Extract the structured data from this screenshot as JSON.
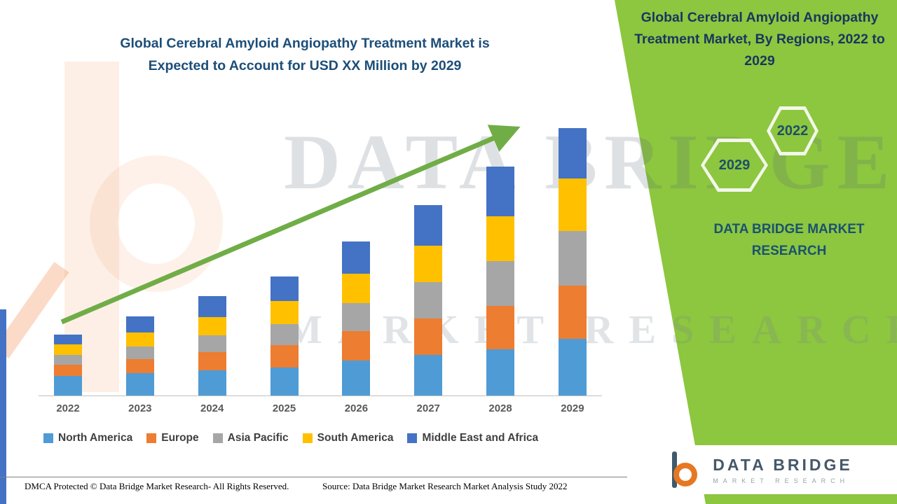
{
  "title": {
    "line1": "Global Cerebral Amyloid Angiopathy Treatment Market is",
    "line2": "Expected to Account for USD XX Million by 2029"
  },
  "side_panel": {
    "title": "Global Cerebral Amyloid Angiopathy Treatment Market, By Regions, 2022 to 2029",
    "hexagon_labels": [
      "2029",
      "2022"
    ],
    "brand_text": "DATA BRIDGE MARKET RESEARCH",
    "background_color": "#8dc63f"
  },
  "watermark": {
    "line1": "DATA BRIDGE",
    "line2": "MARKET RESEARCH"
  },
  "chart_data": {
    "type": "bar",
    "stacked": true,
    "title": "Global Cerebral Amyloid Angiopathy Treatment Market is Expected to Account for USD XX Million by 2029",
    "value_axis": "unlabeled (values shown as USD XX Million)",
    "categories": [
      "2022",
      "2023",
      "2024",
      "2025",
      "2026",
      "2027",
      "2028",
      "2029"
    ],
    "series": [
      {
        "name": "North America",
        "color": "#4f9bd5",
        "values": [
          28,
          32,
          36,
          40,
          50,
          58,
          66,
          81
        ]
      },
      {
        "name": "Europe",
        "color": "#ed7d31",
        "values": [
          16,
          20,
          26,
          32,
          42,
          52,
          62,
          76
        ]
      },
      {
        "name": "Asia Pacific",
        "color": "#a6a6a6",
        "values": [
          14,
          18,
          24,
          30,
          40,
          52,
          64,
          78
        ]
      },
      {
        "name": "South America",
        "color": "#ffc000",
        "values": [
          15,
          20,
          26,
          33,
          42,
          52,
          64,
          75
        ]
      },
      {
        "name": "Middle East and Africa",
        "color": "#4472c4",
        "values": [
          14,
          23,
          30,
          35,
          46,
          58,
          71,
          72
        ]
      }
    ],
    "legend_position": "bottom",
    "gridlines": false,
    "trend_arrow": "upward left-to-right"
  },
  "colors": {
    "arrow": "#70ad47",
    "panel_green": "#8dc63f",
    "title_text": "#1c4e79"
  },
  "footer": {
    "dmca_text": "DMCA Protected © Data Bridge Market Research- All Rights Reserved.",
    "source_text": "Source: Data Bridge Market Research Market Analysis Study 2022"
  },
  "logo": {
    "name": "DATA BRIDGE",
    "subtitle": "MARKET RESEARCH"
  }
}
